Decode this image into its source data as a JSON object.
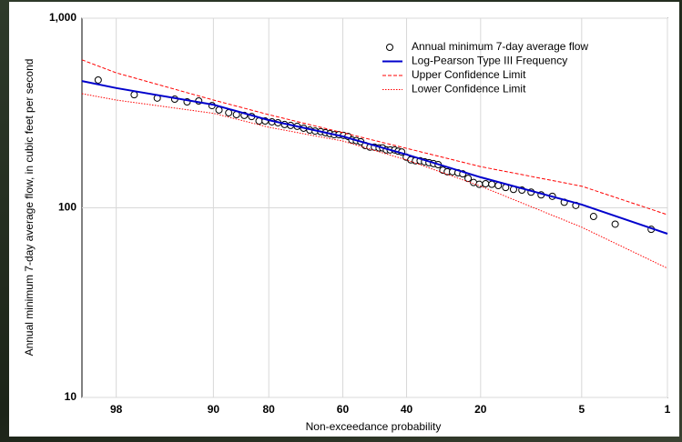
{
  "chart_data": {
    "type": "probability",
    "x_label": "Non-exceedance probability",
    "y_label": "Annual minimum 7-day average flow, in cubic feet per second",
    "xlim": [
      99,
      1
    ],
    "xticks": [
      98,
      90,
      80,
      60,
      40,
      20,
      5,
      1
    ],
    "ylim": [
      10,
      1000
    ],
    "yticks": [
      10,
      100,
      {
        "value": 1000,
        "label": "1,000"
      }
    ],
    "log_y": true,
    "grid": true,
    "legend": "top-right",
    "series": [
      {
        "name": "Annual minimum 7-day average flow",
        "mark": "circle",
        "color": "#000000",
        "x": [
          98.6,
          97.2,
          95.8,
          94.4,
          93.2,
          91.9,
          90.2,
          89.2,
          87.7,
          86.4,
          85.0,
          83.6,
          82.1,
          80.8,
          79.3,
          77.9,
          76.3,
          74.8,
          73.1,
          71.4,
          69.7,
          68.2,
          66.6,
          65.2,
          63.9,
          62.6,
          61.2,
          59.8,
          58.4,
          57.2,
          55.8,
          54.4,
          53.0,
          51.5,
          50.1,
          48.6,
          47.5,
          46.3,
          45.1,
          43.7,
          42.6,
          41.5,
          40.1,
          38.7,
          37.3,
          35.9,
          34.6,
          33.3,
          32.0,
          30.7,
          29.4,
          28.2,
          26.8,
          25.4,
          24.2,
          22.9,
          21.6,
          20.3,
          18.9,
          17.6,
          16.3,
          14.9,
          13.5,
          12.1,
          10.7,
          9.3,
          7.9,
          6.6,
          5.5,
          4.1,
          2.8,
          1.4
        ],
        "values": [
          472,
          395,
          379,
          374,
          362,
          366,
          346,
          328,
          317,
          310,
          307,
          303,
          287,
          287,
          284,
          281,
          275,
          272,
          269,
          263,
          257,
          254,
          252,
          249,
          246,
          243,
          243,
          241,
          238,
          228,
          226,
          223,
          213,
          209,
          209,
          207,
          207,
          202,
          202,
          202,
          199,
          197,
          185,
          179,
          177,
          177,
          175,
          173,
          171,
          169,
          158,
          155,
          155,
          153,
          151,
          143,
          136,
          133,
          134,
          133,
          131,
          128,
          125,
          124,
          121,
          117,
          115,
          107,
          103,
          90,
          82,
          77
        ]
      },
      {
        "name": "Log-Pearson Type III Frequency",
        "mark": "line",
        "color": "#0000cc",
        "x": [
          99,
          98,
          90,
          80,
          60,
          40,
          20,
          5,
          1
        ],
        "values": [
          466,
          428,
          350,
          290,
          238,
          191,
          145,
          104,
          73
        ]
      },
      {
        "name": "Upper Confidence Limit",
        "mark": "dashed",
        "color": "#ff0000",
        "x": [
          99,
          98,
          90,
          80,
          60,
          40,
          20,
          5,
          1
        ],
        "values": [
          603,
          515,
          370,
          310,
          249,
          206,
          165,
          130,
          92
        ]
      },
      {
        "name": "Lower Confidence Limit",
        "mark": "dotted",
        "color": "#ff0000",
        "x": [
          99,
          98,
          90,
          80,
          60,
          40,
          20,
          5,
          1
        ],
        "values": [
          400,
          370,
          315,
          266,
          225,
          179,
          130,
          79,
          48
        ]
      }
    ]
  }
}
